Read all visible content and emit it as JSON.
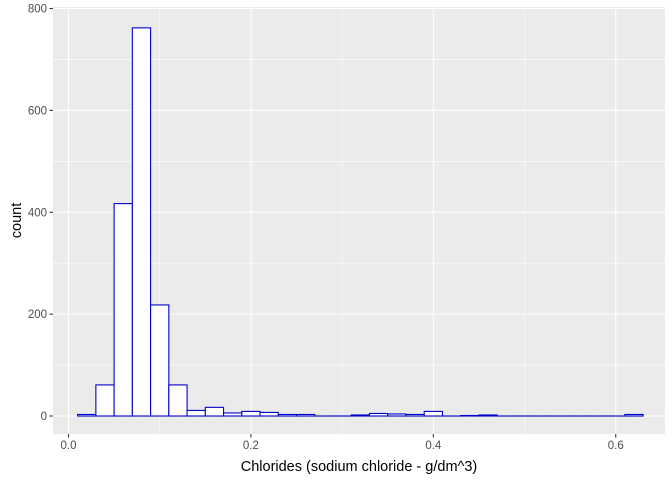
{
  "chart_data": {
    "type": "bar",
    "title": "",
    "xlabel": "Chlorides (sodium chloride - g/dm^3)",
    "ylabel": "count",
    "xlim": [
      -0.017,
      0.654
    ],
    "ylim": [
      0,
      800
    ],
    "x_ticks": [
      {
        "value": 0.0,
        "label": "0.0"
      },
      {
        "value": 0.2,
        "label": "0.2"
      },
      {
        "value": 0.4,
        "label": "0.4"
      },
      {
        "value": 0.6,
        "label": "0.6"
      }
    ],
    "y_ticks": [
      {
        "value": 0,
        "label": "0"
      },
      {
        "value": 200,
        "label": "200"
      },
      {
        "value": 400,
        "label": "400"
      },
      {
        "value": 600,
        "label": "600"
      },
      {
        "value": 800,
        "label": "800"
      }
    ],
    "grid": true,
    "bin_width": 0.02,
    "bins": [
      {
        "center": 0.02,
        "count": 3
      },
      {
        "center": 0.04,
        "count": 61
      },
      {
        "center": 0.06,
        "count": 417
      },
      {
        "center": 0.08,
        "count": 762
      },
      {
        "center": 0.1,
        "count": 218
      },
      {
        "center": 0.12,
        "count": 61
      },
      {
        "center": 0.14,
        "count": 11
      },
      {
        "center": 0.16,
        "count": 17
      },
      {
        "center": 0.18,
        "count": 6
      },
      {
        "center": 0.2,
        "count": 9
      },
      {
        "center": 0.22,
        "count": 7
      },
      {
        "center": 0.24,
        "count": 3
      },
      {
        "center": 0.26,
        "count": 3
      },
      {
        "center": 0.28,
        "count": 0
      },
      {
        "center": 0.3,
        "count": 0
      },
      {
        "center": 0.32,
        "count": 2
      },
      {
        "center": 0.34,
        "count": 5
      },
      {
        "center": 0.36,
        "count": 4
      },
      {
        "center": 0.38,
        "count": 3
      },
      {
        "center": 0.4,
        "count": 9
      },
      {
        "center": 0.42,
        "count": 0
      },
      {
        "center": 0.44,
        "count": 1
      },
      {
        "center": 0.46,
        "count": 2
      },
      {
        "center": 0.48,
        "count": 0
      },
      {
        "center": 0.5,
        "count": 0
      },
      {
        "center": 0.52,
        "count": 0
      },
      {
        "center": 0.54,
        "count": 0
      },
      {
        "center": 0.56,
        "count": 0
      },
      {
        "center": 0.58,
        "count": 0
      },
      {
        "center": 0.6,
        "count": 0
      },
      {
        "center": 0.62,
        "count": 3
      }
    ],
    "colors": {
      "panel_background": "#ebebeb",
      "grid": "#ffffff",
      "bar_fill": "#ffffff",
      "bar_outline": "#0000cd"
    }
  }
}
